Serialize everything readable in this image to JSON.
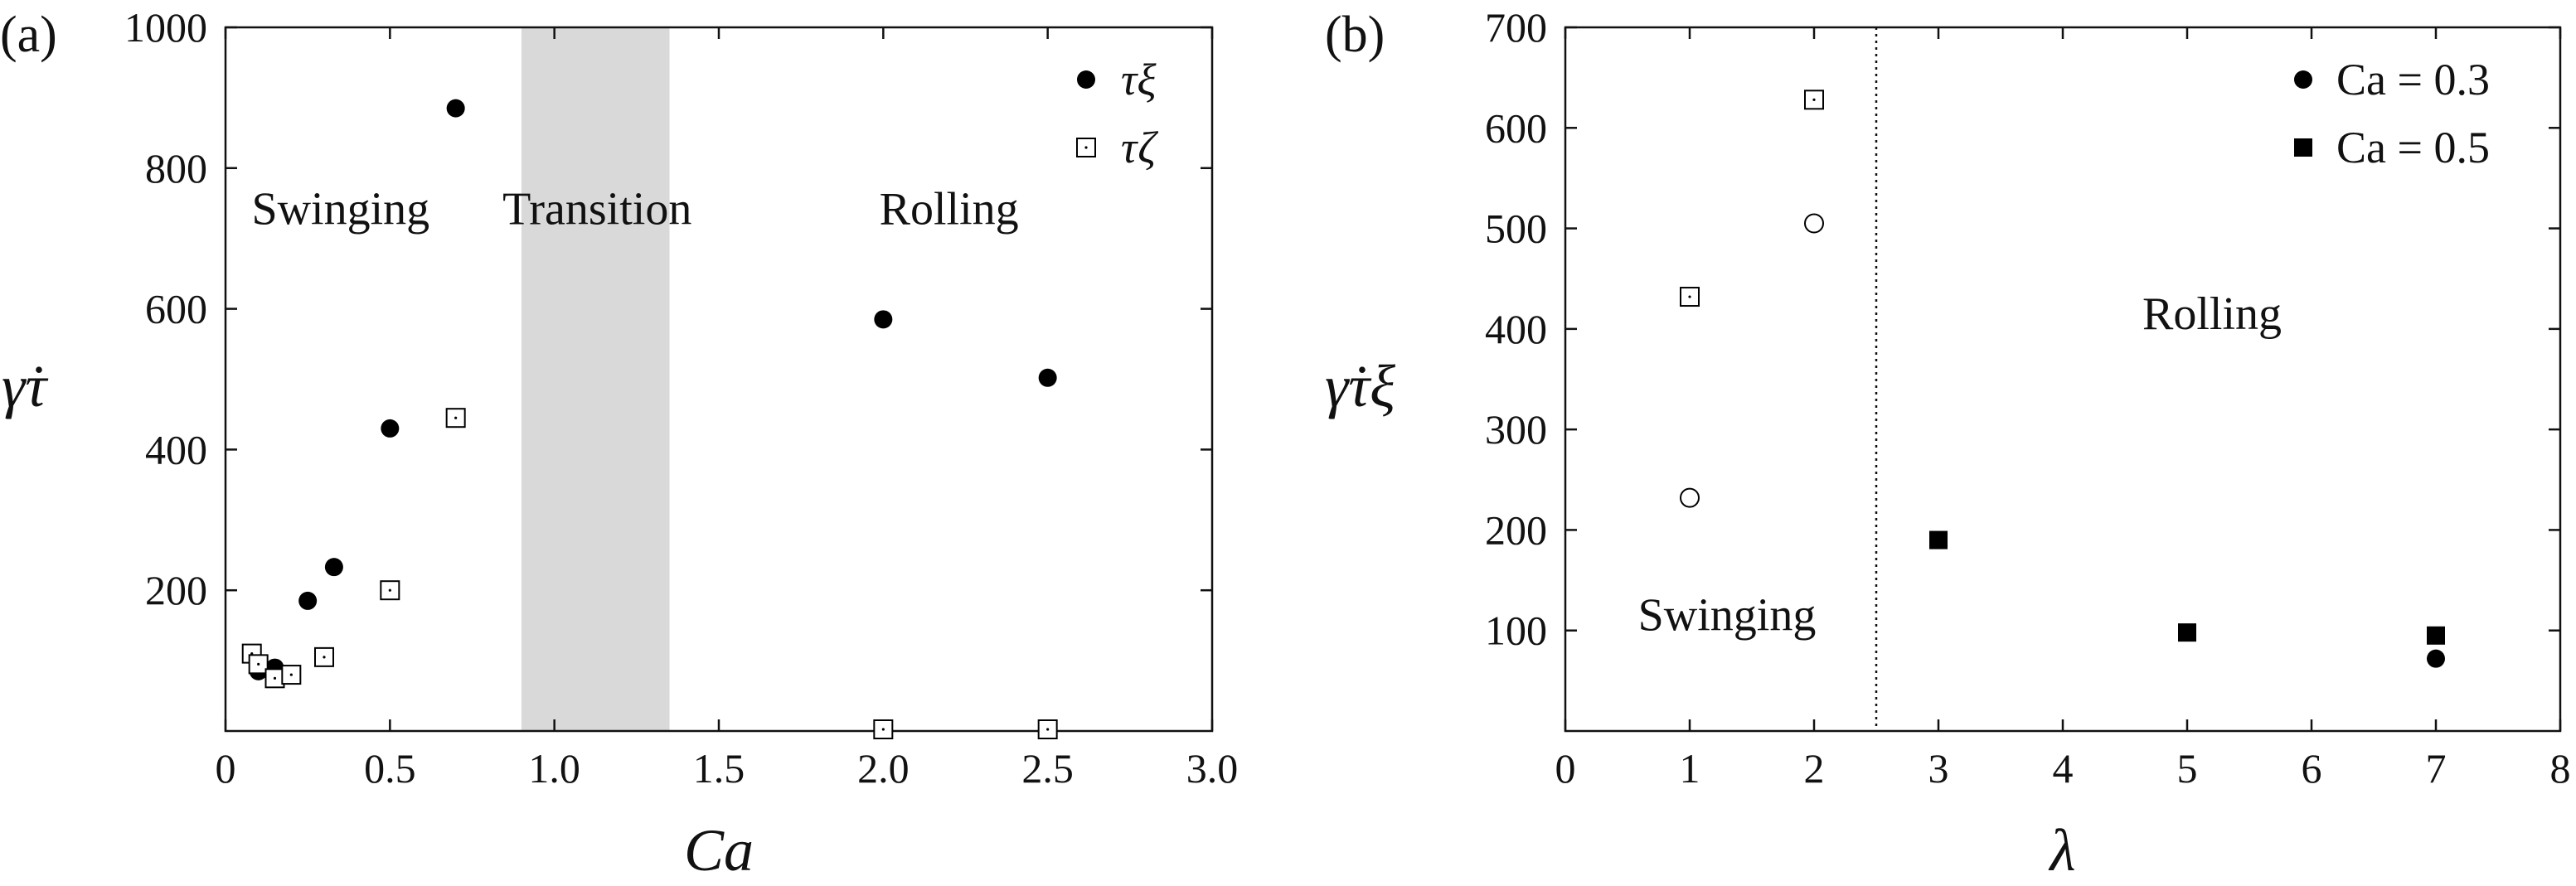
{
  "chart_data": [
    {
      "type": "scatter",
      "panel_label": "(a)",
      "xlabel": "Ca",
      "ylabel": "γ̇τ",
      "xlim": [
        0,
        3.0
      ],
      "ylim": [
        0,
        1000
      ],
      "x_ticks": [
        "0",
        "0.5",
        "1.0",
        "1.5",
        "2.0",
        "2.5",
        "3.0"
      ],
      "y_ticks": [
        "200",
        "400",
        "600",
        "800",
        "1000"
      ],
      "transition_band": [
        0.9,
        1.35
      ],
      "regions": [
        {
          "label": "Swinging",
          "x": 0.35,
          "y": 720
        },
        {
          "label": "Transition",
          "x": 1.13,
          "y": 720
        },
        {
          "label": "Rolling",
          "x": 2.2,
          "y": 720
        }
      ],
      "legend_position": "top-right",
      "series": [
        {
          "name": "τξ",
          "marker": "filled-circle",
          "points": [
            [
              0.08,
              110
            ],
            [
              0.1,
              85
            ],
            [
              0.15,
              90
            ],
            [
              0.25,
              185
            ],
            [
              0.33,
              233
            ],
            [
              0.5,
              430
            ],
            [
              0.7,
              885
            ],
            [
              2.0,
              585
            ],
            [
              2.5,
              502
            ]
          ]
        },
        {
          "name": "τζ",
          "marker": "open-square-dot",
          "points": [
            [
              0.08,
              110
            ],
            [
              0.1,
              95
            ],
            [
              0.15,
              75
            ],
            [
              0.2,
              80
            ],
            [
              0.3,
              105
            ],
            [
              0.5,
              200
            ],
            [
              0.7,
              445
            ],
            [
              2.0,
              0
            ],
            [
              2.5,
              0
            ]
          ]
        }
      ]
    },
    {
      "type": "scatter",
      "panel_label": "(b)",
      "xlabel": "λ",
      "ylabel": "γ̇τξ",
      "xlim": [
        0,
        8
      ],
      "ylim": [
        0,
        700
      ],
      "x_ticks": [
        "0",
        "1",
        "2",
        "3",
        "4",
        "5",
        "6",
        "7",
        "8"
      ],
      "y_ticks": [
        "100",
        "200",
        "300",
        "400",
        "500",
        "600",
        "700"
      ],
      "divider_x": 2.5,
      "regions": [
        {
          "label": "Swinging",
          "x": 1.3,
          "y": 100
        },
        {
          "label": "Rolling",
          "x": 5.2,
          "y": 400
        }
      ],
      "legend_position": "top-right",
      "series": [
        {
          "name": "Ca = 0.3",
          "marker": "circle",
          "points": [
            [
              1,
              232
            ],
            [
              2,
              505
            ],
            [
              7,
              72
            ]
          ]
        },
        {
          "name": "Ca = 0.5",
          "marker": "square",
          "points": [
            [
              1,
              432
            ],
            [
              2,
              628
            ],
            [
              3,
              190
            ],
            [
              5,
              98
            ],
            [
              7,
              95
            ]
          ]
        }
      ]
    }
  ]
}
